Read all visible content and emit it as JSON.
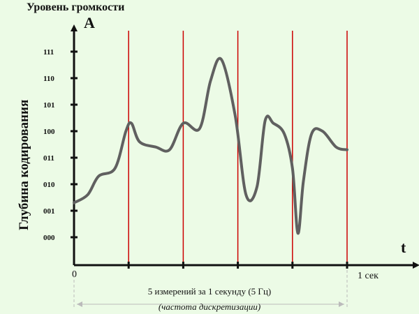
{
  "top_title": "Уровень громкости",
  "y_axis_letter": "A",
  "x_axis_letter": "t",
  "y_axis_label": "Глубина кодирования",
  "origin_label": "0",
  "one_second_label": "1 сек",
  "caption_line1": "5 измерений за 1 секунду (5 Гц)",
  "caption_line2": "(частота дискретизации)",
  "colors": {
    "background": "#ecfbe6",
    "axis": "#111111",
    "sample_lines": "#cc0000",
    "signal": "#606060",
    "dashed": "#bbbbbb"
  },
  "chart_data": {
    "type": "line",
    "y_levels": [
      "000",
      "001",
      "010",
      "011",
      "100",
      "101",
      "110",
      "111"
    ],
    "sample_times": [
      0.2,
      0.4,
      0.6,
      0.8,
      1.0
    ],
    "x_range": [
      0,
      1
    ],
    "signal": {
      "t": [
        0,
        0.05,
        0.09,
        0.15,
        0.19,
        0.21,
        0.24,
        0.3,
        0.35,
        0.4,
        0.46,
        0.5,
        0.54,
        0.59,
        0.63,
        0.67,
        0.7,
        0.73,
        0.77,
        0.8,
        0.82,
        0.84,
        0.87,
        0.91,
        0.96,
        1.0
      ],
      "level": [
        1.3,
        1.6,
        2.3,
        2.6,
        4.0,
        4.3,
        3.6,
        3.4,
        3.3,
        4.3,
        4.1,
        5.9,
        6.7,
        4.6,
        1.6,
        1.9,
        4.4,
        4.3,
        3.9,
        2.6,
        0.15,
        2.1,
        3.9,
        4.0,
        3.4,
        3.3
      ]
    }
  }
}
